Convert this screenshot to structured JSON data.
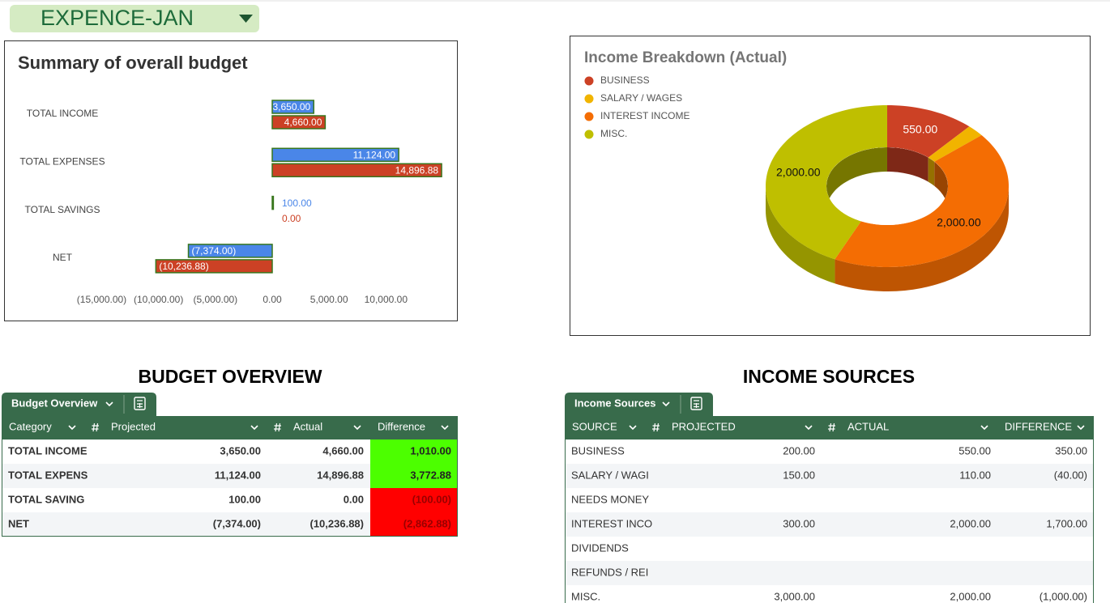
{
  "sheet_selector": "EXPENCE-JAN",
  "chart_data": [
    {
      "type": "bar",
      "orientation": "horizontal",
      "title": "Summary of overall budget",
      "categories": [
        "TOTAL INCOME",
        "TOTAL EXPENSES",
        "TOTAL SAVINGS",
        "NET"
      ],
      "series": [
        {
          "color": "#4a86e8",
          "values": [
            3650,
            11124,
            100,
            -7374
          ],
          "value_labels": [
            "3,650.00",
            "11,124.00",
            "100.00",
            "(7,374.00)"
          ]
        },
        {
          "color": "#cc4125",
          "values": [
            4660,
            14896.88,
            0,
            -10236.88
          ],
          "value_labels": [
            "4,660.00",
            "14,896.88",
            "0.00",
            "(10,236.88)"
          ]
        }
      ],
      "bar_border": "#38761d",
      "xlim": [
        -15000,
        15000
      ],
      "xticks": [
        {
          "value": -15000,
          "label": "(15,000.00)"
        },
        {
          "value": -10000,
          "label": "(10,000.00)"
        },
        {
          "value": -5000,
          "label": "(5,000.00)"
        },
        {
          "value": 0,
          "label": "0.00"
        },
        {
          "value": 5000,
          "label": "5,000.00"
        },
        {
          "value": 10000,
          "label": "10,000.00"
        }
      ]
    },
    {
      "type": "pie",
      "donut": true,
      "three_d": true,
      "title": "Income Breakdown (Actual)",
      "categories": [
        "BUSINESS",
        "SALARY / WAGES",
        "INTEREST INCOME",
        "MISC."
      ],
      "values": [
        550,
        110,
        2000,
        2000
      ],
      "value_labels": [
        "550.00",
        null,
        "2,000.00",
        "2,000.00"
      ],
      "colors": [
        "#cc4125",
        "#f1b400",
        "#f46d03",
        "#bfbf00"
      ],
      "legend": "top-left"
    }
  ],
  "budget_overview": {
    "heading": "BUDGET OVERVIEW",
    "tab": "Budget Overview",
    "columns": [
      "Category",
      "Projected",
      "Actual",
      "Difference"
    ],
    "rows": [
      [
        "TOTAL INCOME",
        "3,650.00",
        "4,660.00",
        "1,010.00"
      ],
      [
        "TOTAL EXPENS",
        "11,124.00",
        "14,896.88",
        "3,772.88"
      ],
      [
        "TOTAL SAVING",
        "100.00",
        "0.00",
        "(100.00)"
      ],
      [
        "NET",
        "(7,374.00)",
        "(10,236.88)",
        "(2,862.88)"
      ]
    ],
    "difference_fills": [
      "#4cff00",
      "#4cff00",
      "#ff0000",
      "#ff0000"
    ],
    "difference_text_colors": [
      "#222222",
      "#222222",
      "#990000",
      "#990000"
    ]
  },
  "income_sources": {
    "heading": "INCOME SOURCES",
    "tab": "Income Sources",
    "columns": [
      "SOURCE",
      "PROJECTED",
      "ACTUAL",
      "DIFFERENCE"
    ],
    "rows": [
      [
        "BUSINESS",
        "200.00",
        "550.00",
        "350.00"
      ],
      [
        "SALARY / WAGI",
        "150.00",
        "110.00",
        "(40.00)"
      ],
      [
        "NEEDS MONEY",
        null,
        null,
        null
      ],
      [
        "INTEREST INCO",
        "300.00",
        "2,000.00",
        "1,700.00"
      ],
      [
        "DIVIDENDS",
        null,
        null,
        null
      ],
      [
        "REFUNDS / REI",
        null,
        null,
        null
      ],
      [
        "MISC.",
        "3,000.00",
        "2,000.00",
        "(1,000.00)"
      ]
    ]
  }
}
